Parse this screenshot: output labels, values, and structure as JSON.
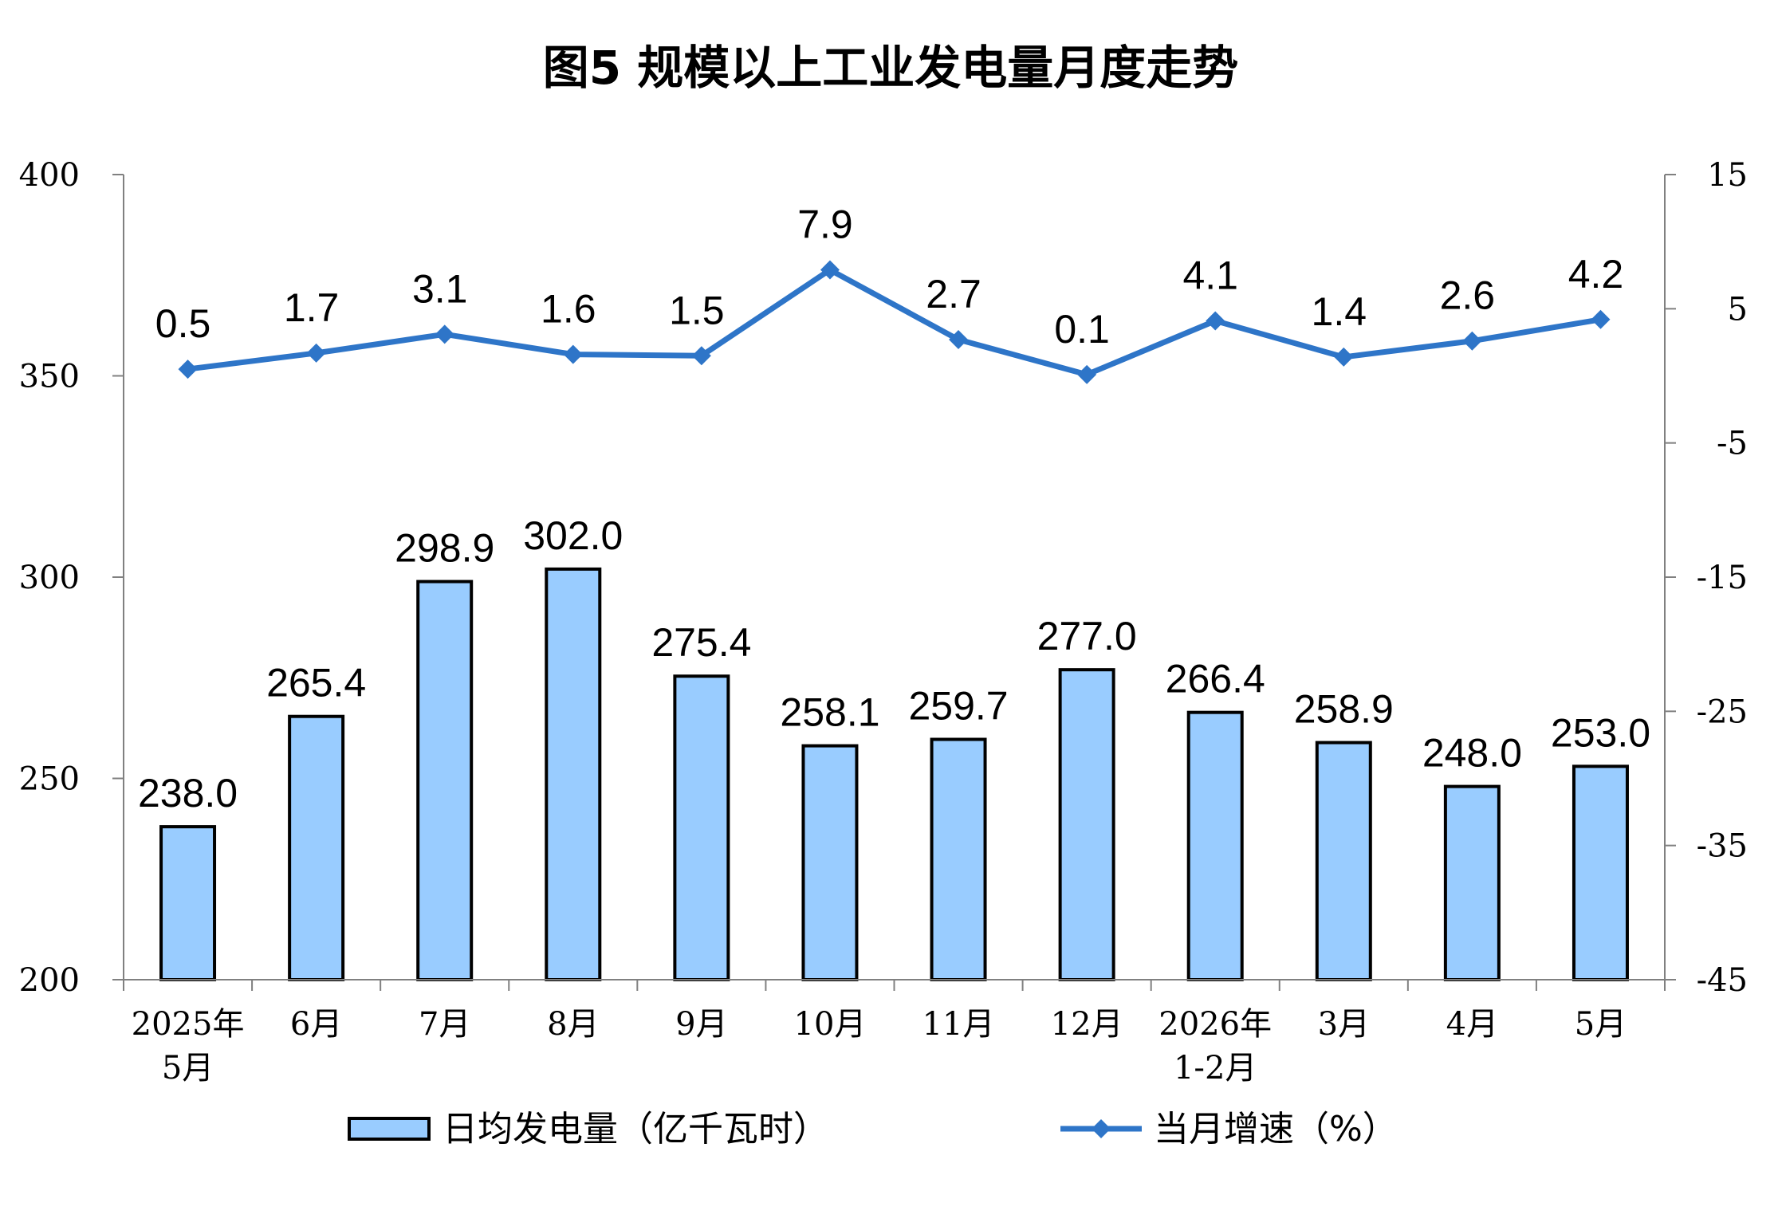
{
  "chart_data": {
    "type": "bar+line",
    "title": "图5  规模以上工业发电量月度走势",
    "categories": [
      [
        "2025年",
        "5月"
      ],
      [
        "6月"
      ],
      [
        "7月"
      ],
      [
        "8月"
      ],
      [
        "9月"
      ],
      [
        "10月"
      ],
      [
        "11月"
      ],
      [
        "12月"
      ],
      [
        "2026年",
        "1-2月"
      ],
      [
        "3月"
      ],
      [
        "4月"
      ],
      [
        "5月"
      ]
    ],
    "series": [
      {
        "name": "日均发电量（亿千瓦时）",
        "type": "bar",
        "axis": "left",
        "color": "#99CCFF",
        "values": [
          238.0,
          265.4,
          298.9,
          302.0,
          275.4,
          258.1,
          259.7,
          277.0,
          266.4,
          258.9,
          248.0,
          253.0
        ],
        "labels": [
          "238.0",
          "265.4",
          "298.9",
          "302.0",
          "275.4",
          "258.1",
          "259.7",
          "277.0",
          "266.4",
          "258.9",
          "248.0",
          "253.0"
        ]
      },
      {
        "name": "当月增速（%）",
        "type": "line",
        "axis": "right",
        "color": "#2E75C8",
        "values": [
          0.5,
          1.7,
          3.1,
          1.6,
          1.5,
          7.9,
          2.7,
          0.1,
          4.1,
          1.4,
          2.6,
          4.2
        ],
        "labels": [
          "0.5",
          "1.7",
          "3.1",
          "1.6",
          "1.5",
          "7.9",
          "2.7",
          "0.1",
          "4.1",
          "1.4",
          "2.6",
          "4.2"
        ]
      }
    ],
    "left_axis": {
      "ylim": [
        200,
        400
      ],
      "ticks": [
        "400",
        "350",
        "300",
        "250",
        "200"
      ]
    },
    "right_axis": {
      "ylim": [
        -45,
        15
      ],
      "ticks": [
        "15",
        "5",
        "-5",
        "-15",
        "-25",
        "-35",
        "-45"
      ]
    },
    "grid": false,
    "legend_position": "bottom"
  }
}
